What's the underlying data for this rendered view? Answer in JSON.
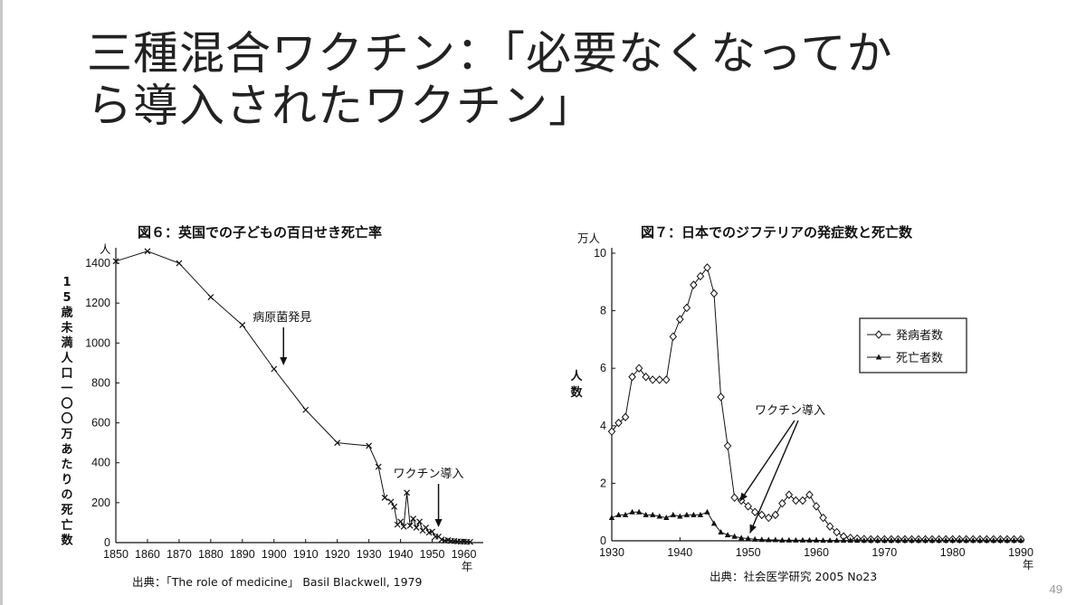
{
  "slide": {
    "title_line1": "三種混合ワクチン：「必要なくなってか",
    "title_line2": "ら導入されたワクチン」",
    "page_number": "49"
  },
  "chart_data": [
    {
      "type": "line",
      "title": "図６：英国での子どもの百日せき死亡率",
      "ylabel": "15歳未満人口一〇〇万あたりの死亡数",
      "y_unit": "人",
      "x_unit": "年",
      "xlim": [
        1850,
        1965
      ],
      "ylim": [
        0,
        1450
      ],
      "xticks": [
        1850,
        1860,
        1870,
        1880,
        1890,
        1900,
        1910,
        1920,
        1930,
        1940,
        1950,
        1960
      ],
      "yticks": [
        0,
        200,
        400,
        600,
        800,
        1000,
        1200,
        1400
      ],
      "grid": false,
      "series": [
        {
          "marker": "x",
          "x": [
            1850,
            1860,
            1870,
            1880,
            1890,
            1900,
            1910,
            1920,
            1930,
            1933,
            1935,
            1937,
            1938,
            1939,
            1940,
            1941,
            1942,
            1943,
            1944,
            1945,
            1946,
            1947,
            1948,
            1949,
            1950,
            1951,
            1952,
            1953,
            1954,
            1955,
            1956,
            1957,
            1958,
            1959,
            1960,
            1961,
            1962
          ],
          "y": [
            1410,
            1460,
            1400,
            1230,
            1090,
            870,
            665,
            500,
            485,
            380,
            225,
            205,
            180,
            90,
            105,
            80,
            250,
            85,
            120,
            75,
            105,
            60,
            75,
            50,
            55,
            30,
            30,
            15,
            10,
            12,
            8,
            8,
            6,
            5,
            5,
            4,
            3
          ]
        }
      ],
      "annotations": [
        {
          "text": "病原菌発見",
          "x": 1903
        },
        {
          "text": "ワクチン導入",
          "x": 1952
        }
      ],
      "source": "出典：「The role of medicine」 Basil Blackwell, 1979"
    },
    {
      "type": "line",
      "title": "図７：日本でのジフテリアの発症数と死亡数",
      "ylabel": "人数",
      "y_unit": "万人",
      "x_unit": "年",
      "xlim": [
        1930,
        1990
      ],
      "ylim": [
        0,
        10
      ],
      "xticks": [
        1930,
        1940,
        1950,
        1960,
        1970,
        1980,
        1990
      ],
      "yticks": [
        0,
        2,
        4,
        6,
        8,
        10
      ],
      "grid": false,
      "legend_position": "right",
      "series": [
        {
          "name": "発病者数",
          "marker": "diamond-open",
          "x": [
            1930,
            1931,
            1932,
            1933,
            1934,
            1935,
            1936,
            1937,
            1938,
            1939,
            1940,
            1941,
            1942,
            1943,
            1944,
            1945,
            1946,
            1947,
            1948,
            1949,
            1950,
            1951,
            1952,
            1953,
            1954,
            1955,
            1956,
            1957,
            1958,
            1959,
            1960,
            1961,
            1962,
            1963,
            1964,
            1965,
            1966,
            1967,
            1968,
            1969,
            1970,
            1971,
            1972,
            1973,
            1974,
            1975,
            1976,
            1977,
            1978,
            1979,
            1980,
            1981,
            1982,
            1983,
            1984,
            1985,
            1986,
            1987,
            1988,
            1989,
            1990
          ],
          "y": [
            3.8,
            4.1,
            4.3,
            5.7,
            6.0,
            5.7,
            5.6,
            5.6,
            5.6,
            7.1,
            7.7,
            8.1,
            8.9,
            9.2,
            9.5,
            8.6,
            5.0,
            3.3,
            1.5,
            1.4,
            1.2,
            1.0,
            0.9,
            0.8,
            0.9,
            1.3,
            1.6,
            1.4,
            1.4,
            1.6,
            1.2,
            0.8,
            0.5,
            0.3,
            0.15,
            0.1,
            0.08,
            0.06,
            0.05,
            0.05,
            0.05,
            0.05,
            0.05,
            0.05,
            0.05,
            0.05,
            0.05,
            0.05,
            0.05,
            0.05,
            0.05,
            0.05,
            0.05,
            0.05,
            0.05,
            0.05,
            0.05,
            0.05,
            0.05,
            0.05,
            0.05
          ]
        },
        {
          "name": "死亡者数",
          "marker": "triangle-filled",
          "x": [
            1930,
            1931,
            1932,
            1933,
            1934,
            1935,
            1936,
            1937,
            1938,
            1939,
            1940,
            1941,
            1942,
            1943,
            1944,
            1945,
            1946,
            1947,
            1948,
            1949,
            1950,
            1951,
            1952,
            1953,
            1954,
            1955,
            1956,
            1957,
            1958,
            1959,
            1960,
            1961,
            1962,
            1963,
            1964,
            1965,
            1966,
            1967,
            1968,
            1969,
            1970,
            1971,
            1972,
            1973,
            1974,
            1975,
            1976,
            1977,
            1978,
            1979,
            1980,
            1981,
            1982,
            1983,
            1984,
            1985,
            1986,
            1987,
            1988,
            1989,
            1990
          ],
          "y": [
            0.8,
            0.9,
            0.9,
            1.0,
            1.0,
            0.9,
            0.9,
            0.85,
            0.8,
            0.9,
            0.85,
            0.9,
            0.9,
            0.9,
            1.0,
            0.6,
            0.3,
            0.2,
            0.15,
            0.1,
            0.08,
            0.05,
            0.04,
            0.03,
            0.03,
            0.02,
            0.02,
            0.02,
            0.02,
            0.02,
            0.02,
            0.01,
            0.01,
            0.01,
            0.01,
            0.01,
            0.01,
            0.01,
            0.01,
            0.01,
            0.01,
            0.01,
            0.01,
            0.01,
            0.01,
            0.01,
            0.01,
            0.01,
            0.01,
            0.01,
            0.01,
            0.01,
            0.01,
            0.01,
            0.01,
            0.01,
            0.01,
            0.01,
            0.01,
            0.01,
            0.01
          ]
        }
      ],
      "annotations": [
        {
          "text": "ワクチン導入",
          "x": 1950
        }
      ],
      "source": "出典：社会医学研究 2005 No23"
    }
  ]
}
